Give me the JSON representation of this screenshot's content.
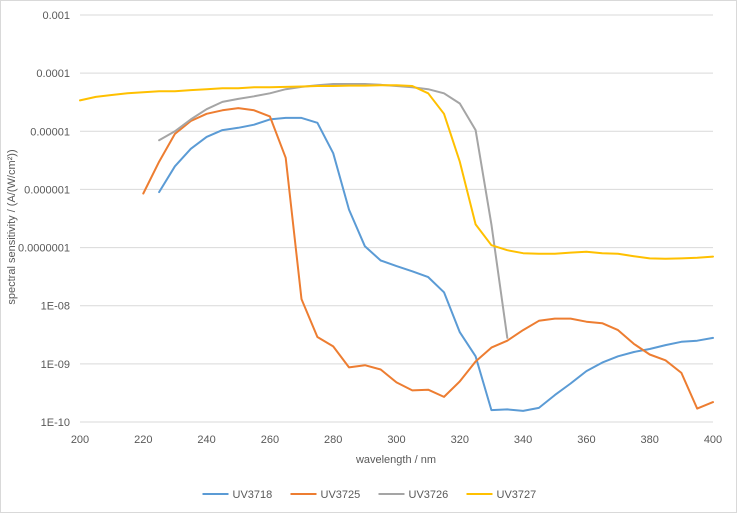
{
  "chart_data": {
    "type": "line",
    "title": "",
    "xlabel": "wavelength / nm",
    "ylabel": "spectral sensitivity / (A/(W/cm²))",
    "xlim": [
      200,
      400
    ],
    "ylim": [
      1e-10,
      0.001
    ],
    "y_scale": "log",
    "grid": true,
    "legend_position": "bottom",
    "x_ticks": [
      "200",
      "220",
      "240",
      "260",
      "280",
      "300",
      "320",
      "340",
      "360",
      "380",
      "400"
    ],
    "y_ticks": [
      "1E-10",
      "1E-09",
      "1E-08",
      "0.0000001",
      "0.000001",
      "0.00001",
      "0.0001",
      "0.001"
    ],
    "series": [
      {
        "name": "UV3718",
        "color": "#5B9BD5",
        "x": [
          225,
          230,
          235,
          240,
          245,
          250,
          255,
          260,
          265,
          270,
          275,
          280,
          285,
          290,
          295,
          300,
          305,
          310,
          315,
          320,
          325,
          330,
          335,
          340,
          345,
          350,
          355,
          360,
          365,
          370,
          375,
          380,
          385,
          390,
          395,
          400
        ],
        "y": [
          9e-07,
          2.5e-06,
          5e-06,
          8e-06,
          1.05e-05,
          1.15e-05,
          1.3e-05,
          1.6e-05,
          1.7e-05,
          1.7e-05,
          1.4e-05,
          4.2e-06,
          4.5e-07,
          1.05e-07,
          6e-08,
          4.8e-08,
          3.9e-08,
          3.1e-08,
          1.7e-08,
          3.5e-09,
          1.35e-09,
          1.6e-10,
          1.65e-10,
          1.55e-10,
          1.75e-10,
          2.9e-10,
          4.6e-10,
          7.5e-10,
          1.05e-09,
          1.35e-09,
          1.6e-09,
          1.8e-09,
          2.1e-09,
          2.4e-09,
          2.5e-09,
          2.8e-09
        ]
      },
      {
        "name": "UV3725",
        "color": "#ED7D31",
        "x": [
          220,
          225,
          230,
          235,
          240,
          245,
          250,
          255,
          260,
          265,
          270,
          275,
          280,
          285,
          290,
          295,
          300,
          305,
          310,
          315,
          320,
          325,
          330,
          335,
          340,
          345,
          350,
          355,
          360,
          365,
          370,
          375,
          380,
          385,
          390,
          395,
          400
        ],
        "y": [
          8.5e-07,
          3e-06,
          9e-06,
          1.5e-05,
          2e-05,
          2.3e-05,
          2.5e-05,
          2.3e-05,
          1.8e-05,
          3.5e-06,
          1.3e-08,
          2.9e-09,
          2e-09,
          8.7e-10,
          9.5e-10,
          8e-10,
          4.8e-10,
          3.5e-10,
          3.6e-10,
          2.7e-10,
          5e-10,
          1.1e-09,
          1.9e-09,
          2.5e-09,
          3.8e-09,
          5.5e-09,
          6e-09,
          6e-09,
          5.3e-09,
          5e-09,
          3.8e-09,
          2.2e-09,
          1.45e-09,
          1.15e-09,
          7e-10,
          1.7e-10,
          2.2e-10
        ]
      },
      {
        "name": "UV3726",
        "color": "#A5A5A5",
        "x": [
          225,
          230,
          235,
          240,
          245,
          250,
          255,
          260,
          265,
          270,
          275,
          280,
          285,
          290,
          295,
          300,
          305,
          310,
          315,
          320,
          325,
          330,
          335
        ],
        "y": [
          7e-06,
          1e-05,
          1.6e-05,
          2.4e-05,
          3.2e-05,
          3.6e-05,
          4e-05,
          4.5e-05,
          5.3e-05,
          5.8e-05,
          6.2e-05,
          6.5e-05,
          6.5e-05,
          6.5e-05,
          6.3e-05,
          6e-05,
          5.7e-05,
          5.3e-05,
          4.5e-05,
          3e-05,
          1.05e-05,
          2.5e-07,
          2.8e-09
        ]
      },
      {
        "name": "UV3727",
        "color": "#FFC000",
        "x": [
          200,
          205,
          210,
          215,
          220,
          225,
          230,
          235,
          240,
          245,
          250,
          255,
          260,
          265,
          270,
          275,
          280,
          285,
          290,
          295,
          300,
          305,
          310,
          315,
          320,
          325,
          330,
          335,
          340,
          345,
          350,
          355,
          360,
          365,
          370,
          375,
          380,
          385,
          390,
          395,
          400
        ],
        "y": [
          3.4e-05,
          3.9e-05,
          4.2e-05,
          4.5e-05,
          4.7e-05,
          4.9e-05,
          4.9e-05,
          5.1e-05,
          5.3e-05,
          5.5e-05,
          5.5e-05,
          5.7e-05,
          5.7e-05,
          5.8e-05,
          5.9e-05,
          6e-05,
          6e-05,
          6.1e-05,
          6.1e-05,
          6.2e-05,
          6.2e-05,
          6e-05,
          4.5e-05,
          2e-05,
          3e-06,
          2.5e-07,
          1.1e-07,
          9e-08,
          8e-08,
          7.8e-08,
          7.8e-08,
          8.2e-08,
          8.5e-08,
          8e-08,
          7.8e-08,
          7.1e-08,
          6.5e-08,
          6.4e-08,
          6.5e-08,
          6.7e-08,
          7e-08
        ]
      }
    ]
  }
}
